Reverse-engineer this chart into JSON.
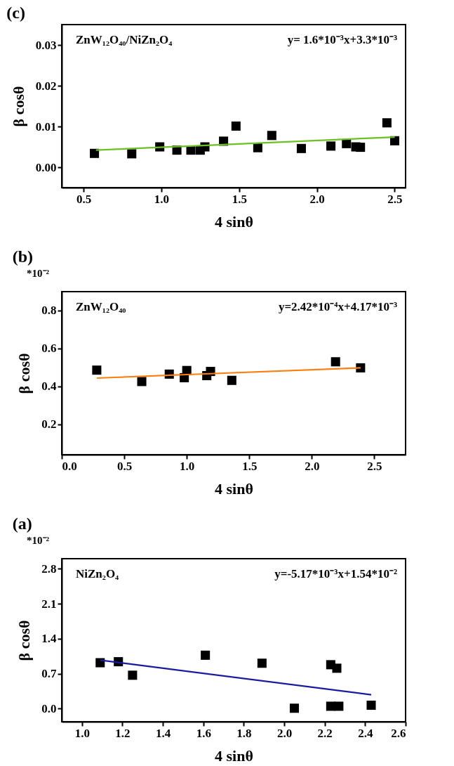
{
  "chart_data": [
    {
      "type": "scatter",
      "title": "(c)",
      "xlabel": "4 sinθ",
      "ylabel": "β cosθ",
      "annotations": [
        "ZnW₁₂O₄₀/NiZn₂O₄",
        "y= 1.6*10⁻³x+3.3*10⁻³"
      ],
      "xlim": [
        0.36,
        2.57
      ],
      "ylim": [
        -0.005,
        0.035
      ],
      "xticks": [
        0.5,
        {
          "value": 1,
          "label": "1.0"
        },
        1.5,
        {
          "value": 2,
          "label": "2.0"
        },
        2.5
      ],
      "yticks": [
        {
          "value": 0,
          "label": "0.00"
        },
        0.01,
        0.02,
        0.03
      ],
      "grid": false,
      "series": [
        {
          "marker": "square",
          "color": "#000000",
          "x": [
            0.57,
            0.81,
            0.99,
            1.1,
            1.19,
            1.25,
            1.28,
            1.4,
            1.48,
            1.62,
            1.71,
            1.9,
            2.09,
            2.19,
            2.25,
            2.28,
            2.45,
            2.5
          ],
          "values": [
            0.0034,
            0.0033,
            0.005,
            0.0042,
            0.0042,
            0.0042,
            0.005,
            0.0064,
            0.0101,
            0.0048,
            0.0078,
            0.0046,
            0.0052,
            0.0058,
            0.005,
            0.0049,
            0.0109,
            0.0065
          ]
        },
        {
          "type": "line",
          "color": "#6cc024",
          "x": [
            0.58,
            2.5
          ],
          "values": [
            0.0042,
            0.0074
          ]
        }
      ]
    },
    {
      "type": "scatter",
      "title": "(b)",
      "xlabel": "4 sinθ",
      "ylabel": "β cosθ",
      "annotations": [
        "ZnW₁₂O₄₀",
        "y=2.42*10⁻⁴x+4.17*10⁻³",
        "*10⁻²"
      ],
      "xlim": [
        0,
        2.75
      ],
      "ylim": [
        0.04,
        0.9
      ],
      "xticks": [
        {
          "value": 0,
          "label": "0.0"
        },
        0.5,
        {
          "value": 1,
          "label": "1.0"
        },
        1.5,
        {
          "value": 2,
          "label": "2.0"
        },
        2.5
      ],
      "yticks": [
        0.2,
        0.4,
        0.6,
        0.8
      ],
      "grid": false,
      "series": [
        {
          "marker": "square",
          "color": "#000000",
          "x": [
            0.28,
            0.64,
            0.86,
            0.98,
            1.0,
            1.16,
            1.19,
            1.36,
            2.19,
            2.39
          ],
          "values": [
            0.486,
            0.426,
            0.465,
            0.446,
            0.484,
            0.457,
            0.479,
            0.432,
            0.53,
            0.498
          ]
        },
        {
          "type": "line",
          "color": "#ff7f0e",
          "x": [
            0.28,
            2.39
          ],
          "values": [
            0.444,
            0.498
          ]
        }
      ]
    },
    {
      "type": "scatter",
      "title": "(a)",
      "xlabel": "4 sinθ",
      "ylabel": "β cosθ",
      "annotations": [
        "NiZn₂O₄",
        "y=-5.17*10⁻³x+1.54*10⁻²",
        "*10⁻²"
      ],
      "xlim": [
        0.9,
        2.6
      ],
      "ylim": [
        -0.26,
        3.0
      ],
      "xticks": [
        {
          "value": 1,
          "label": "1.0"
        },
        1.2,
        1.4,
        1.6,
        1.8,
        {
          "value": 2,
          "label": "2.0"
        },
        2.2,
        2.4,
        2.6
      ],
      "yticks": [
        {
          "value": 0,
          "label": "0.0"
        },
        0.7,
        1.4,
        2.1,
        2.8
      ],
      "grid": false,
      "series": [
        {
          "marker": "square",
          "color": "#000000",
          "x": [
            1.09,
            1.18,
            1.25,
            1.61,
            1.89,
            2.05,
            2.23,
            2.26,
            2.23,
            2.27,
            2.43
          ],
          "values": [
            0.92,
            0.94,
            0.67,
            1.07,
            0.91,
            0.01,
            0.88,
            0.81,
            0.05,
            0.05,
            0.07
          ]
        },
        {
          "type": "line",
          "color": "#1a1aa0",
          "x": [
            1.09,
            2.43
          ],
          "values": [
            0.97,
            0.28
          ]
        }
      ]
    }
  ]
}
